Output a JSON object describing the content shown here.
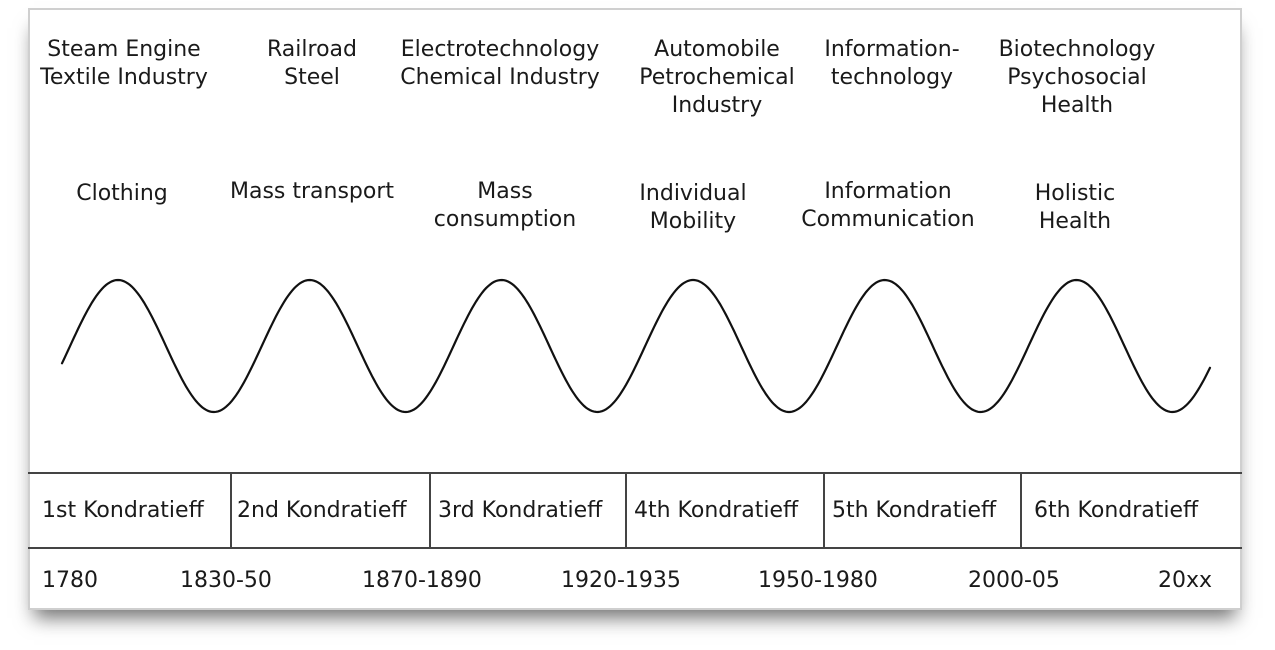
{
  "technologies": [
    "Steam Engine\nTextile Industry",
    "Railroad\nSteel",
    "Electrotechnology\nChemical Industry",
    "Automobile\nPetrochemical\nIndustry",
    "Information-\ntechnology",
    "Biotechnology\nPsychosocial\nHealth"
  ],
  "needs": [
    "Clothing",
    "Mass transport",
    "Mass\nconsumption",
    "Individual\nMobility",
    "Information\nCommunication",
    "Holistic\nHealth"
  ],
  "waves": [
    "1st Kondratieff",
    "2nd Kondratieff",
    "3rd Kondratieff",
    "4th Kondratieff",
    "5th Kondratieff",
    "6th Kondratieff"
  ],
  "years": [
    "1780",
    "1830-50",
    "1870-1890",
    "1920-1935",
    "1950-1980",
    "2000-05",
    "20xx"
  ],
  "colors": {
    "line": "#111111",
    "text": "#1a1a1a",
    "border": "#444444"
  }
}
